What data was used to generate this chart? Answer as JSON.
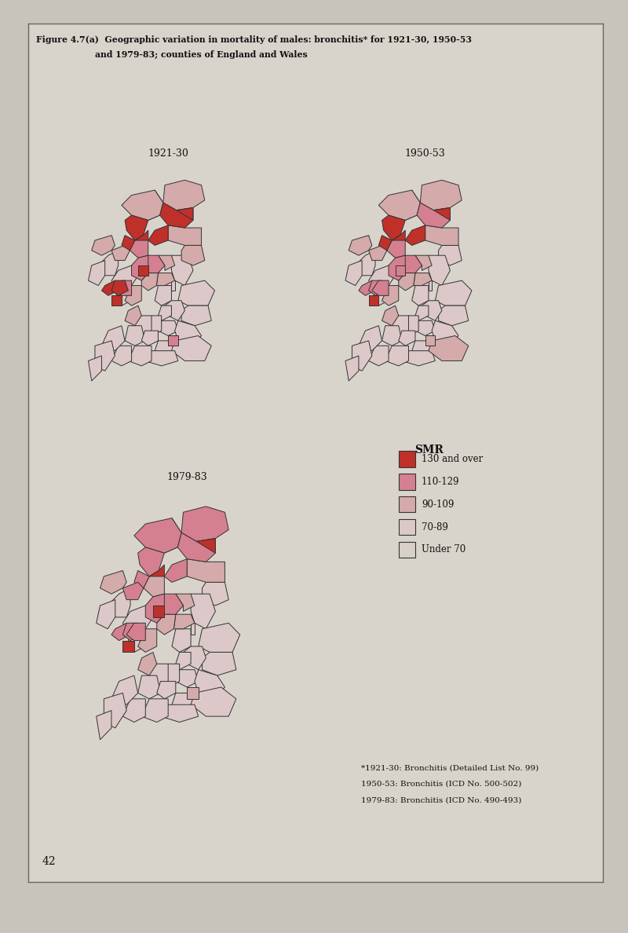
{
  "title_line1": "Figure 4.7(a)  Geographic variation in mortality of males: bronchitis* for 1921-30, 1950-53",
  "title_line2": "and 1979-83; counties of England and Wales",
  "map_labels": [
    "1921-30",
    "1950-53",
    "1979-83"
  ],
  "legend_title": "SMR",
  "legend_entries": [
    {
      "label": "130 and over",
      "color": "#C0302A"
    },
    {
      "label": "110-129",
      "color": "#D98090"
    },
    {
      "label": "90-109",
      "color": "#D4AAAA"
    },
    {
      "label": "70-89",
      "color": "#DCC8C8"
    },
    {
      "label": "Under 70",
      "color": "#D8D0C8"
    }
  ],
  "footnotes": [
    "*1921-30: Bronchitis (Detailed List No. 99)",
    "1950-53: Bronchitis (ICD No. 500-502)",
    "1979-83: Bronchitis (ICD No. 490-493)"
  ],
  "page_number": "42",
  "page_bg": "#C8C4BC",
  "box_bg": "#D8D4CC",
  "inner_bg": "#D8D4CC",
  "border_color": "#666666",
  "map_line_color": "#333333"
}
